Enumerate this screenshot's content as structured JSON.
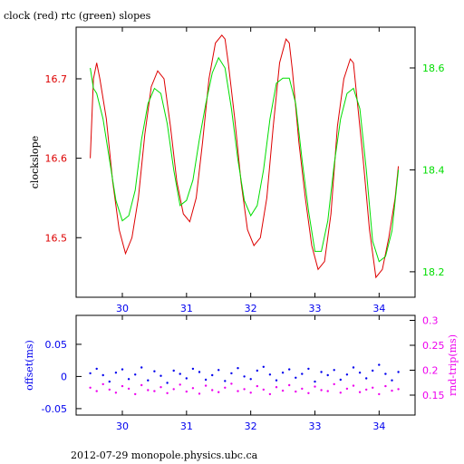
{
  "title": "clock (red) rtc (green) slopes",
  "footer": "2012-07-29 monopole.physics.ubc.ca",
  "colors": {
    "clock": "#dd0000",
    "rtc": "#00dd00",
    "offset": "#0000ee",
    "rndtrip": "#ee00ee",
    "axis": "#000000"
  },
  "chart_data": [
    {
      "type": "line",
      "xlabel": "",
      "ylabel_left": "clockslope",
      "ylabel_right": "",
      "xlim": [
        29.28,
        34.56
      ],
      "ylim_left": [
        16.425,
        16.765
      ],
      "ylim_right": [
        18.15,
        18.68
      ],
      "xticks": [
        30,
        31,
        32,
        33,
        34
      ],
      "xtick_labels": [
        "30",
        "31",
        "32",
        "33",
        "34"
      ],
      "yticks_left": [
        16.5,
        16.6,
        16.7
      ],
      "ytick_labels_left": [
        "16.5",
        "16.6",
        "16.7"
      ],
      "yticks_right": [
        18.2,
        18.4,
        18.6
      ],
      "ytick_labels_right": [
        "18.2",
        "18.4",
        "18.6"
      ],
      "series": [
        {
          "axis": "left",
          "x": [
            29.5,
            29.55,
            29.6,
            29.65,
            29.75,
            29.85,
            29.95,
            30.05,
            30.15,
            30.25,
            30.35,
            30.45,
            30.55,
            30.65,
            30.75,
            30.85,
            30.95,
            31.05,
            31.15,
            31.25,
            31.35,
            31.45,
            31.55,
            31.6,
            31.65,
            31.75,
            31.85,
            31.95,
            32.05,
            32.15,
            32.25,
            32.35,
            32.45,
            32.55,
            32.6,
            32.65,
            32.75,
            32.85,
            32.95,
            33.05,
            33.15,
            33.25,
            33.35,
            33.45,
            33.55,
            33.6,
            33.65,
            33.75,
            33.85,
            33.95,
            34.05,
            34.15,
            34.25,
            34.3
          ],
          "y": [
            16.6,
            16.7,
            16.72,
            16.7,
            16.65,
            16.57,
            16.51,
            16.48,
            16.5,
            16.55,
            16.63,
            16.69,
            16.71,
            16.7,
            16.64,
            16.57,
            16.53,
            16.52,
            16.55,
            16.62,
            16.7,
            16.745,
            16.755,
            16.75,
            16.72,
            16.65,
            16.57,
            16.51,
            16.49,
            16.5,
            16.55,
            16.64,
            16.72,
            16.75,
            16.745,
            16.71,
            16.62,
            16.55,
            16.49,
            16.46,
            16.47,
            16.53,
            16.64,
            16.7,
            16.725,
            16.72,
            16.68,
            16.6,
            16.51,
            16.45,
            16.46,
            16.5,
            16.55,
            16.59
          ]
        },
        {
          "axis": "right",
          "x": [
            29.5,
            29.55,
            29.6,
            29.7,
            29.8,
            29.9,
            30.0,
            30.1,
            30.2,
            30.3,
            30.4,
            30.5,
            30.6,
            30.7,
            30.8,
            30.9,
            31.0,
            31.1,
            31.2,
            31.3,
            31.4,
            31.5,
            31.6,
            31.7,
            31.8,
            31.9,
            32.0,
            32.1,
            32.2,
            32.3,
            32.4,
            32.5,
            32.6,
            32.7,
            32.8,
            32.9,
            33.0,
            33.1,
            33.2,
            33.3,
            33.4,
            33.5,
            33.6,
            33.7,
            33.8,
            33.9,
            34.0,
            34.1,
            34.2,
            34.3
          ],
          "y": [
            18.6,
            18.56,
            18.55,
            18.5,
            18.42,
            18.34,
            18.3,
            18.31,
            18.36,
            18.46,
            18.53,
            18.56,
            18.55,
            18.49,
            18.4,
            18.33,
            18.34,
            18.38,
            18.46,
            18.53,
            18.59,
            18.62,
            18.6,
            18.52,
            18.42,
            18.34,
            18.31,
            18.33,
            18.4,
            18.5,
            18.57,
            18.58,
            18.58,
            18.53,
            18.42,
            18.32,
            18.24,
            18.24,
            18.3,
            18.41,
            18.5,
            18.55,
            18.56,
            18.52,
            18.4,
            18.26,
            18.22,
            18.23,
            18.28,
            18.4
          ]
        }
      ]
    },
    {
      "type": "scatter",
      "xlabel": "",
      "ylabel_left": "offset(ms)",
      "ylabel_right": "rnd-trip(ms)",
      "xlim": [
        29.28,
        34.56
      ],
      "ylim_left": [
        -0.06,
        0.095
      ],
      "ylim_right": [
        0.11,
        0.31
      ],
      "xticks": [
        30,
        31,
        32,
        33,
        34
      ],
      "xtick_labels": [
        "30",
        "31",
        "32",
        "33",
        "34"
      ],
      "yticks_left": [
        -0.05,
        0,
        0.05
      ],
      "ytick_labels_left": [
        "-0.05",
        "0",
        "0.05"
      ],
      "yticks_right": [
        0.15,
        0.2,
        0.25,
        0.3
      ],
      "ytick_labels_right": [
        "0.15",
        "0.2",
        "0.25",
        "0.3"
      ],
      "series": [
        {
          "axis": "left",
          "name": "offset",
          "x": [
            29.5,
            29.6,
            29.7,
            29.8,
            29.9,
            30.0,
            30.1,
            30.2,
            30.3,
            30.4,
            30.5,
            30.6,
            30.7,
            30.8,
            30.9,
            31.0,
            31.1,
            31.2,
            31.3,
            31.4,
            31.5,
            31.6,
            31.7,
            31.8,
            31.9,
            32.0,
            32.1,
            32.2,
            32.3,
            32.4,
            32.5,
            32.6,
            32.7,
            32.8,
            32.9,
            33.0,
            33.1,
            33.2,
            33.3,
            33.4,
            33.5,
            33.6,
            33.7,
            33.8,
            33.9,
            34.0,
            34.1,
            34.2,
            34.3
          ],
          "y": [
            0.005,
            0.012,
            0.002,
            -0.008,
            0.006,
            0.011,
            -0.004,
            0.003,
            0.014,
            -0.006,
            0.008,
            0.001,
            -0.01,
            0.009,
            0.004,
            -0.003,
            0.012,
            0.007,
            -0.005,
            0.002,
            0.01,
            -0.007,
            0.005,
            0.013,
            0.0,
            -0.004,
            0.009,
            0.015,
            0.003,
            -0.006,
            0.006,
            0.011,
            -0.002,
            0.004,
            0.012,
            -0.008,
            0.007,
            0.002,
            0.01,
            -0.005,
            0.003,
            0.014,
            0.006,
            -0.003,
            0.009,
            0.018,
            0.004,
            -0.006,
            0.007
          ]
        },
        {
          "axis": "right",
          "name": "rnd-trip",
          "x": [
            29.5,
            29.6,
            29.7,
            29.8,
            29.9,
            30.0,
            30.1,
            30.2,
            30.3,
            30.4,
            30.5,
            30.6,
            30.7,
            30.8,
            30.9,
            31.0,
            31.1,
            31.2,
            31.3,
            31.4,
            31.5,
            31.6,
            31.7,
            31.8,
            31.9,
            32.0,
            32.1,
            32.2,
            32.3,
            32.4,
            32.5,
            32.6,
            32.7,
            32.8,
            32.9,
            33.0,
            33.1,
            33.2,
            33.3,
            33.4,
            33.5,
            33.6,
            33.7,
            33.8,
            33.9,
            34.0,
            34.1,
            34.2,
            34.3
          ],
          "y": [
            0.165,
            0.158,
            0.172,
            0.161,
            0.155,
            0.168,
            0.163,
            0.152,
            0.17,
            0.16,
            0.158,
            0.166,
            0.154,
            0.162,
            0.171,
            0.157,
            0.164,
            0.153,
            0.169,
            0.16,
            0.156,
            0.165,
            0.173,
            0.158,
            0.162,
            0.155,
            0.168,
            0.161,
            0.152,
            0.166,
            0.159,
            0.17,
            0.157,
            0.163,
            0.154,
            0.167,
            0.16,
            0.158,
            0.172,
            0.155,
            0.163,
            0.169,
            0.156,
            0.161,
            0.165,
            0.152,
            0.168,
            0.159,
            0.162
          ]
        }
      ]
    }
  ]
}
